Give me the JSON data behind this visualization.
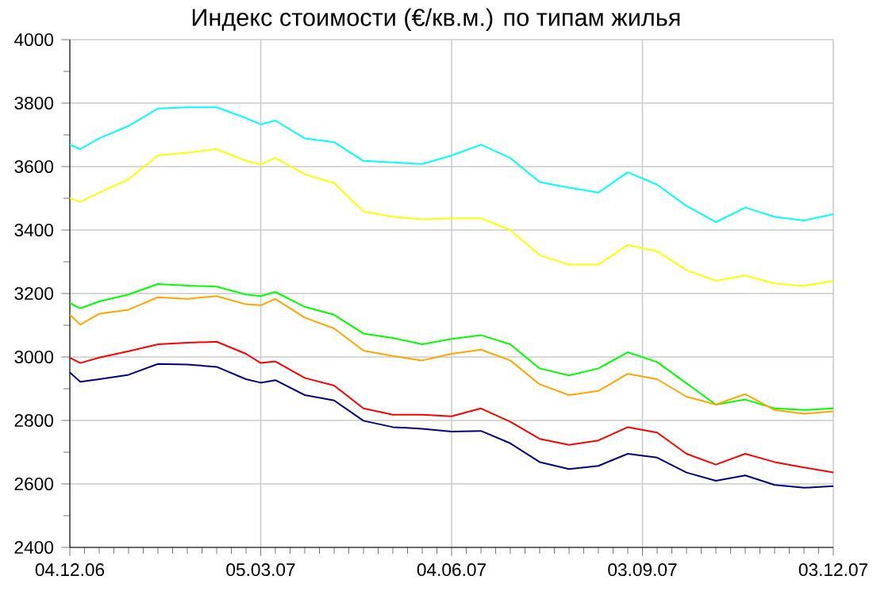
{
  "chart_data": {
    "type": "line",
    "title": "Индекс стоимости (€/кв.м.) по типам жилья",
    "x": [
      "2006-12-04",
      "2006-12-09",
      "2006-12-18",
      "2007-01-01",
      "2007-01-15",
      "2007-01-29",
      "2007-02-12",
      "2007-02-26",
      "2007-03-05",
      "2007-03-12",
      "2007-03-26",
      "2007-04-09",
      "2007-04-23",
      "2007-05-07",
      "2007-05-21",
      "2007-06-04",
      "2007-06-18",
      "2007-07-02",
      "2007-07-16",
      "2007-07-30",
      "2007-08-13",
      "2007-08-27",
      "2007-09-10",
      "2007-09-24",
      "2007-10-08",
      "2007-10-22",
      "2007-11-05",
      "2007-11-19",
      "2007-12-03"
    ],
    "series": [
      {
        "color": "#00ffff",
        "values": [
          3669,
          3655,
          3689,
          3728,
          3783,
          3787,
          3787,
          3753,
          3733,
          3745,
          3689,
          3677,
          3618,
          3613,
          3608,
          3635,
          3669,
          3627,
          3551,
          3534,
          3518,
          3582,
          3543,
          3476,
          3425,
          3471,
          3442,
          3430,
          3450
        ]
      },
      {
        "color": "#ffff00",
        "values": [
          3501,
          3489,
          3518,
          3560,
          3635,
          3644,
          3655,
          3618,
          3607,
          3627,
          3576,
          3548,
          3459,
          3442,
          3434,
          3437,
          3437,
          3400,
          3321,
          3291,
          3291,
          3353,
          3333,
          3274,
          3240,
          3257,
          3232,
          3224,
          3240
        ]
      },
      {
        "color": "#00ff00",
        "values": [
          3170,
          3153,
          3175,
          3197,
          3230,
          3225,
          3222,
          3197,
          3192,
          3205,
          3158,
          3133,
          3074,
          3060,
          3040,
          3057,
          3069,
          3040,
          2964,
          2942,
          2964,
          3015,
          2984,
          2917,
          2850,
          2866,
          2838,
          2833,
          2838
        ]
      },
      {
        "color": "#ffa500",
        "values": [
          3133,
          3102,
          3136,
          3149,
          3188,
          3183,
          3192,
          3166,
          3163,
          3183,
          3124,
          3090,
          3020,
          3003,
          2989,
          3010,
          3023,
          2989,
          2914,
          2880,
          2893,
          2947,
          2930,
          2875,
          2850,
          2883,
          2833,
          2821,
          2829
        ]
      },
      {
        "color": "#ff0000",
        "values": [
          2998,
          2981,
          2998,
          3018,
          3040,
          3045,
          3048,
          3010,
          2981,
          2986,
          2934,
          2910,
          2838,
          2818,
          2818,
          2813,
          2838,
          2796,
          2742,
          2723,
          2737,
          2779,
          2762,
          2695,
          2661,
          2695,
          2669,
          2652,
          2636
        ]
      },
      {
        "color": "#000080",
        "values": [
          2951,
          2922,
          2930,
          2944,
          2978,
          2976,
          2969,
          2930,
          2919,
          2927,
          2880,
          2863,
          2799,
          2779,
          2774,
          2765,
          2767,
          2728,
          2669,
          2647,
          2657,
          2695,
          2683,
          2636,
          2610,
          2627,
          2597,
          2588,
          2593
        ]
      }
    ],
    "xlim": [
      "2006-12-04",
      "2007-12-03"
    ],
    "xticks": [
      {
        "value": "2006-12-04",
        "label": "04.12.06"
      },
      {
        "value": "2007-03-05",
        "label": "05.03.07"
      },
      {
        "value": "2007-06-04",
        "label": "04.06.07"
      },
      {
        "value": "2007-09-03",
        "label": "03.09.07"
      },
      {
        "value": "2007-12-03",
        "label": "03.12.07"
      }
    ],
    "ylim": [
      2400,
      4000
    ],
    "yticks": [
      2400,
      2600,
      2800,
      3000,
      3200,
      3400,
      3600,
      3800,
      4000
    ],
    "grid": true,
    "marker": "none",
    "line_style": "solid"
  }
}
